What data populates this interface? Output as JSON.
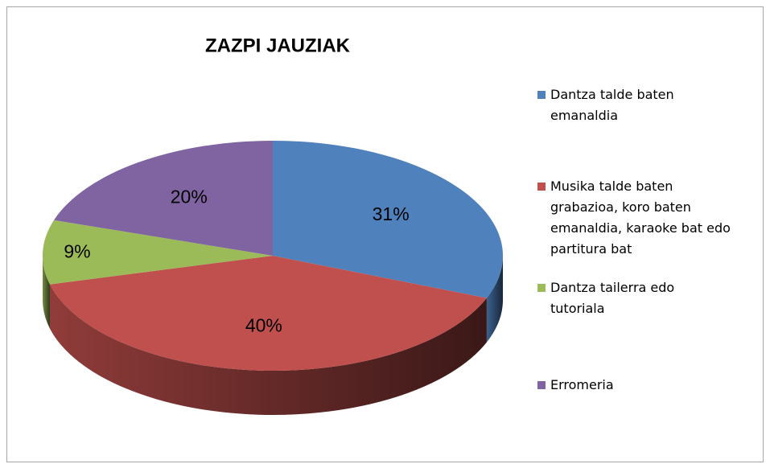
{
  "chart_data": {
    "type": "pie",
    "title": "ZAZPI JAUZIAK",
    "categories": [
      "Dantza talde baten emanaldia",
      "Musika talde baten grabazioa,  koro baten emanaldia, karaoke bat edo partitura bat",
      "Dantza tailerra edo tutoriala",
      "Erromeria"
    ],
    "values": [
      31,
      40,
      9,
      20
    ],
    "value_labels": [
      "31%",
      "40%",
      "9%",
      "20%"
    ],
    "colors": [
      "#4f81bd",
      "#c0504d",
      "#9bbb59",
      "#8064a2"
    ],
    "legend": "right"
  }
}
